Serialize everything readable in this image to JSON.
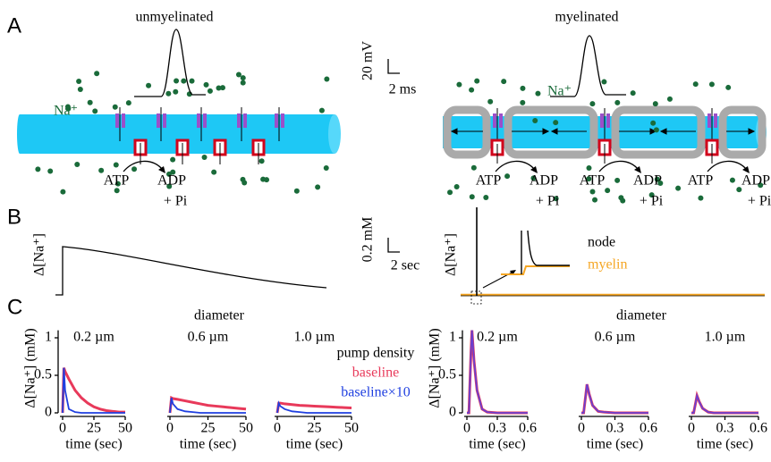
{
  "diagram": {
    "panel_labels": [
      "A",
      "B",
      "C"
    ],
    "panel_a": {
      "left_title": "unmyelinated",
      "right_title": "myelinated",
      "scale_mv": "20 mV",
      "scale_ms": "2 ms",
      "na_left": "Na⁺",
      "na_right": "Na⁺",
      "left_reaction": {
        "atp": "ATP",
        "adp": "ADP",
        "pi": "+ Pi"
      },
      "right_reactions": [
        {
          "atp": "ATP",
          "adp": "ADP",
          "pi": "+ Pi"
        },
        {
          "atp": "ATP",
          "adp": "ADP",
          "pi": "+ Pi"
        },
        {
          "atp": "ATP",
          "adp": "ADP",
          "pi": "+ Pi"
        }
      ]
    },
    "panel_b": {
      "y_label_left": "Δ[Na⁺]",
      "y_label_right": "Δ[Na⁺]",
      "scale_mm": "0.2 mM",
      "scale_sec": "2 sec",
      "node": "node",
      "myelin": "myelin"
    },
    "panel_c": {
      "diameter_left": "diameter",
      "diameter_right": "diameter",
      "legend_title": "pump density"
    }
  },
  "chart_data": [
    {
      "type": "line",
      "title": "0.2 µm",
      "x_label": "time (sec)",
      "y_label": "Δ[Na⁺] (mM)",
      "x": [
        0,
        1,
        2,
        5,
        10,
        15,
        20,
        25,
        30,
        35,
        40,
        45,
        50
      ],
      "xlim": [
        0,
        50
      ],
      "xticks": [
        0,
        25,
        50
      ],
      "ylim": [
        0,
        1.1
      ],
      "yticks": [
        0,
        0.5,
        1
      ],
      "series": [
        {
          "name": "baseline",
          "color": "#e8395a",
          "values": [
            0,
            0.6,
            0.55,
            0.45,
            0.3,
            0.2,
            0.13,
            0.08,
            0.05,
            0.03,
            0.02,
            0.01,
            0.01
          ]
        },
        {
          "name": "baseline×10",
          "color": "#1f3fe0",
          "values": [
            0,
            0.6,
            0.3,
            0.05,
            0.01,
            0,
            0,
            0,
            0,
            0,
            0,
            0,
            0
          ]
        }
      ]
    },
    {
      "type": "line",
      "title": "0.6 µm",
      "x_label": "time (sec)",
      "x": [
        0,
        1,
        2,
        5,
        10,
        15,
        20,
        25,
        30,
        35,
        40,
        45,
        50
      ],
      "xlim": [
        0,
        50
      ],
      "xticks": [
        0,
        25,
        50
      ],
      "ylim": [
        0,
        1.1
      ],
      "series": [
        {
          "color": "#e8395a",
          "values": [
            0,
            0.2,
            0.19,
            0.18,
            0.16,
            0.14,
            0.12,
            0.1,
            0.09,
            0.08,
            0.07,
            0.06,
            0.05
          ]
        },
        {
          "color": "#1f3fe0",
          "values": [
            0,
            0.2,
            0.12,
            0.05,
            0.02,
            0.01,
            0,
            0,
            0,
            0,
            0,
            0,
            0
          ]
        }
      ]
    },
    {
      "type": "line",
      "title": "1.0 µm",
      "x_label": "time (sec)",
      "x": [
        0,
        1,
        2,
        5,
        10,
        15,
        20,
        25,
        30,
        35,
        40,
        45,
        50
      ],
      "xlim": [
        0,
        50
      ],
      "xticks": [
        0,
        25,
        50
      ],
      "ylim": [
        0,
        1.1
      ],
      "series": [
        {
          "color": "#e8395a",
          "values": [
            0,
            0.13,
            0.13,
            0.12,
            0.11,
            0.1,
            0.095,
            0.09,
            0.085,
            0.08,
            0.075,
            0.07,
            0.065
          ]
        },
        {
          "color": "#1f3fe0",
          "values": [
            0,
            0.13,
            0.09,
            0.05,
            0.02,
            0.01,
            0,
            0,
            0,
            0,
            0,
            0,
            0
          ]
        }
      ]
    },
    {
      "type": "line",
      "title": "0.2 µm",
      "x_label": "time (sec)",
      "y_label": "Δ[Na⁺] (mM)",
      "x": [
        0,
        0.02,
        0.04,
        0.05,
        0.07,
        0.1,
        0.15,
        0.2,
        0.3,
        0.4,
        0.5,
        0.6
      ],
      "xlim": [
        0,
        0.6
      ],
      "xticks": [
        0,
        0.3,
        0.6
      ],
      "ylim": [
        0,
        1.1
      ],
      "yticks": [
        0,
        0.5,
        1
      ],
      "series": [
        {
          "color": "#e8395a",
          "values": [
            0,
            0,
            0.8,
            1.1,
            0.7,
            0.3,
            0.05,
            0.01,
            0,
            0,
            0,
            0
          ]
        },
        {
          "color": "#6a3fd0",
          "values": [
            0,
            0,
            0.8,
            1.1,
            0.7,
            0.3,
            0.05,
            0.01,
            0,
            0,
            0,
            0
          ]
        }
      ]
    },
    {
      "type": "line",
      "title": "0.6 µm",
      "x_label": "time (sec)",
      "x": [
        0,
        0.02,
        0.04,
        0.05,
        0.07,
        0.1,
        0.15,
        0.2,
        0.3,
        0.4,
        0.5,
        0.6
      ],
      "xlim": [
        0,
        0.6
      ],
      "xticks": [
        0,
        0.3,
        0.6
      ],
      "ylim": [
        0,
        1.1
      ],
      "series": [
        {
          "color": "#e8395a",
          "values": [
            0,
            0,
            0.25,
            0.38,
            0.25,
            0.1,
            0.02,
            0.01,
            0,
            0,
            0,
            0
          ]
        },
        {
          "color": "#6a3fd0",
          "values": [
            0,
            0,
            0.25,
            0.38,
            0.25,
            0.1,
            0.02,
            0.01,
            0,
            0,
            0,
            0
          ]
        }
      ]
    },
    {
      "type": "line",
      "title": "1.0 µm",
      "x_label": "time (sec)",
      "x": [
        0,
        0.02,
        0.04,
        0.05,
        0.07,
        0.1,
        0.15,
        0.2,
        0.3,
        0.4,
        0.5,
        0.6
      ],
      "xlim": [
        0,
        0.6
      ],
      "xticks": [
        0,
        0.3,
        0.6
      ],
      "ylim": [
        0,
        1.1
      ],
      "series": [
        {
          "color": "#e8395a",
          "values": [
            0,
            0,
            0.15,
            0.23,
            0.15,
            0.06,
            0.01,
            0,
            0,
            0,
            0,
            0
          ]
        },
        {
          "color": "#6a3fd0",
          "values": [
            0,
            0,
            0.15,
            0.23,
            0.15,
            0.06,
            0.01,
            0,
            0,
            0,
            0,
            0
          ]
        }
      ]
    }
  ]
}
